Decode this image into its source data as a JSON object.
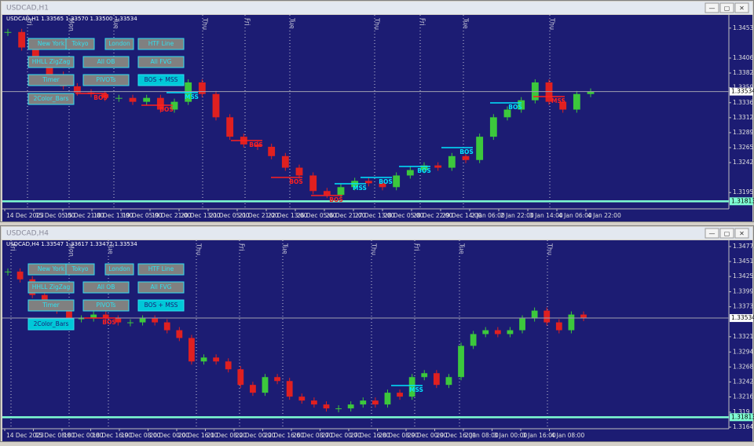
{
  "windows": [
    {
      "title": "USDCAD,H1",
      "symbol_info": "USDCAD,H1  1.33565 1.33570 1.33500 1.33534",
      "buttons": [
        {
          "label": "New York",
          "active": false
        },
        {
          "label": "Tokyo",
          "active": false
        },
        {
          "label": "London",
          "active": false
        },
        {
          "label": "HTF Line",
          "active": false
        },
        {
          "label": "HHLL ZigZag",
          "active": false
        },
        {
          "label": "All OB",
          "active": false
        },
        {
          "label": "All FVG",
          "active": false
        },
        {
          "label": "Timer",
          "active": false
        },
        {
          "label": "PIVOTs",
          "active": false
        },
        {
          "label": "BOS + MSS",
          "active": true
        },
        {
          "label": "2Color_Bars",
          "active": false
        }
      ],
      "chart_data": {
        "type": "candlestick",
        "closes": [
          1.34469,
          1.34226,
          1.33982,
          1.338,
          1.33617,
          1.3352,
          1.33496,
          1.33435,
          1.33435,
          1.33374,
          1.33435,
          1.33252,
          1.33374,
          1.33678,
          1.33496,
          1.33131,
          1.32826,
          1.32705,
          1.32668,
          1.32522,
          1.3234,
          1.32218,
          1.31974,
          1.31913,
          1.32035,
          1.32133,
          1.32096,
          1.32035,
          1.32218,
          1.32303,
          1.32376,
          1.3234,
          1.32522,
          1.32461,
          1.32826,
          1.33131,
          1.33252,
          1.33398,
          1.33678,
          1.33374,
          1.33252,
          1.33496,
          1.33534
        ],
        "ylim": [
          1.31694,
          1.34737
        ],
        "yticks": [
          1.3453,
          1.3406,
          1.33825,
          1.33595,
          1.3336,
          1.33125,
          1.3289,
          1.32655,
          1.3242,
          1.3195
        ],
        "x_labels": [
          "14 Dec 2023",
          "15 Dec 05:00",
          "15 Dec 21:00",
          "18 Dec 13:00",
          "19 Dec 05:00",
          "19 Dec 21:00",
          "20 Dec 13:00",
          "21 Dec 05:00",
          "21 Dec 21:00",
          "22 Dec 13:00",
          "26 Dec 05:00",
          "26 Dec 21:00",
          "27 Dec 13:00",
          "28 Dec 05:00",
          "28 Dec 22:00",
          "29 Dec 14:00",
          "2 Jan 06:00",
          "2 Jan 22:00",
          "3 Jan 14:00",
          "4 Jan 06:00",
          "4 Jan 22:00"
        ],
        "day_labels": [
          "Fri",
          "Mon",
          "Tue",
          "Thu",
          "Fri",
          "Tue",
          "Thu",
          "Fri",
          "Tue",
          "Thu"
        ],
        "bid": 1.33534,
        "level": 1.31813,
        "annotations": [
          {
            "text": "BOS",
            "color": "#ff2020"
          },
          {
            "text": "BOS",
            "color": "#ff2020"
          },
          {
            "text": "MSS",
            "color": "#00e5ff"
          },
          {
            "text": "BOS",
            "color": "#ff2020"
          },
          {
            "text": "BOS",
            "color": "#ff2020"
          },
          {
            "text": "BOS",
            "color": "#ff2020"
          },
          {
            "text": "MSS",
            "color": "#00e5ff"
          },
          {
            "text": "BOS",
            "color": "#00e5ff"
          },
          {
            "text": "BOS",
            "color": "#00e5ff"
          },
          {
            "text": "BOS",
            "color": "#00e5ff"
          },
          {
            "text": "BOS",
            "color": "#00e5ff"
          },
          {
            "text": "MSS",
            "color": "#ff2020"
          }
        ]
      }
    },
    {
      "title": "USDCAD,H4",
      "symbol_info": "USDCAD,H4  1.33547 1.33617 1.33477 1.33534",
      "buttons": [
        {
          "label": "New York",
          "active": false
        },
        {
          "label": "Tokyo",
          "active": false
        },
        {
          "label": "London",
          "active": false
        },
        {
          "label": "HTF Line",
          "active": false
        },
        {
          "label": "HHLL ZigZag",
          "active": false
        },
        {
          "label": "All OB",
          "active": false
        },
        {
          "label": "All FVG",
          "active": false
        },
        {
          "label": "Timer",
          "active": false
        },
        {
          "label": "PIVOTs",
          "active": false
        },
        {
          "label": "BOS + MSS",
          "active": true
        },
        {
          "label": "2Color_Bars",
          "active": true
        }
      ],
      "chart_data": {
        "type": "candlestick",
        "closes": [
          1.34341,
          1.34206,
          1.33934,
          1.33731,
          1.33663,
          1.33527,
          1.33527,
          1.33595,
          1.33527,
          1.33459,
          1.33459,
          1.33527,
          1.33459,
          1.33323,
          1.33188,
          1.32781,
          1.32849,
          1.32781,
          1.32645,
          1.32374,
          1.32238,
          1.32509,
          1.32441,
          1.3217,
          1.32102,
          1.32034,
          1.31966,
          1.31966,
          1.32034,
          1.32102,
          1.32034,
          1.32238,
          1.3217,
          1.32509,
          1.32577,
          1.32374,
          1.32509,
          1.33052,
          1.33256,
          1.33323,
          1.33256,
          1.33323,
          1.33527,
          1.33663,
          1.33459,
          1.33323,
          1.33595,
          1.33534
        ],
        "ylim": [
          1.31613,
          1.34884
        ],
        "yticks": [
          1.34775,
          1.34515,
          1.34255,
          1.3399,
          1.3373,
          1.3321,
          1.32945,
          1.32685,
          1.32425,
          1.32165,
          1.319,
          1.3164
        ],
        "x_labels": [
          "14 Dec 2023",
          "15 Dec 08:00",
          "18 Dec 00:00",
          "18 Dec 16:00",
          "19 Dec 08:00",
          "20 Dec 00:00",
          "20 Dec 16:00",
          "21 Dec 08:00",
          "22 Dec 00:00",
          "22 Dec 16:00",
          "26 Dec 08:00",
          "27 Dec 00:00",
          "27 Dec 16:00",
          "28 Dec 08:00",
          "29 Dec 00:00",
          "29 Dec 16:00",
          "2 Jan 08:00",
          "3 Jan 00:00",
          "3 Jan 16:00",
          "4 Jan 08:00"
        ],
        "day_labels": [
          "Fri",
          "Mon",
          "Tue",
          "Thu",
          "Fri",
          "Tue",
          "Thu",
          "Fri",
          "Tue",
          "Thu"
        ],
        "bid": 1.33534,
        "level": 1.31813,
        "annotations": [
          {
            "text": "BOS",
            "color": "#ff2020"
          },
          {
            "text": "MSS",
            "color": "#00e5ff"
          }
        ]
      }
    }
  ]
}
